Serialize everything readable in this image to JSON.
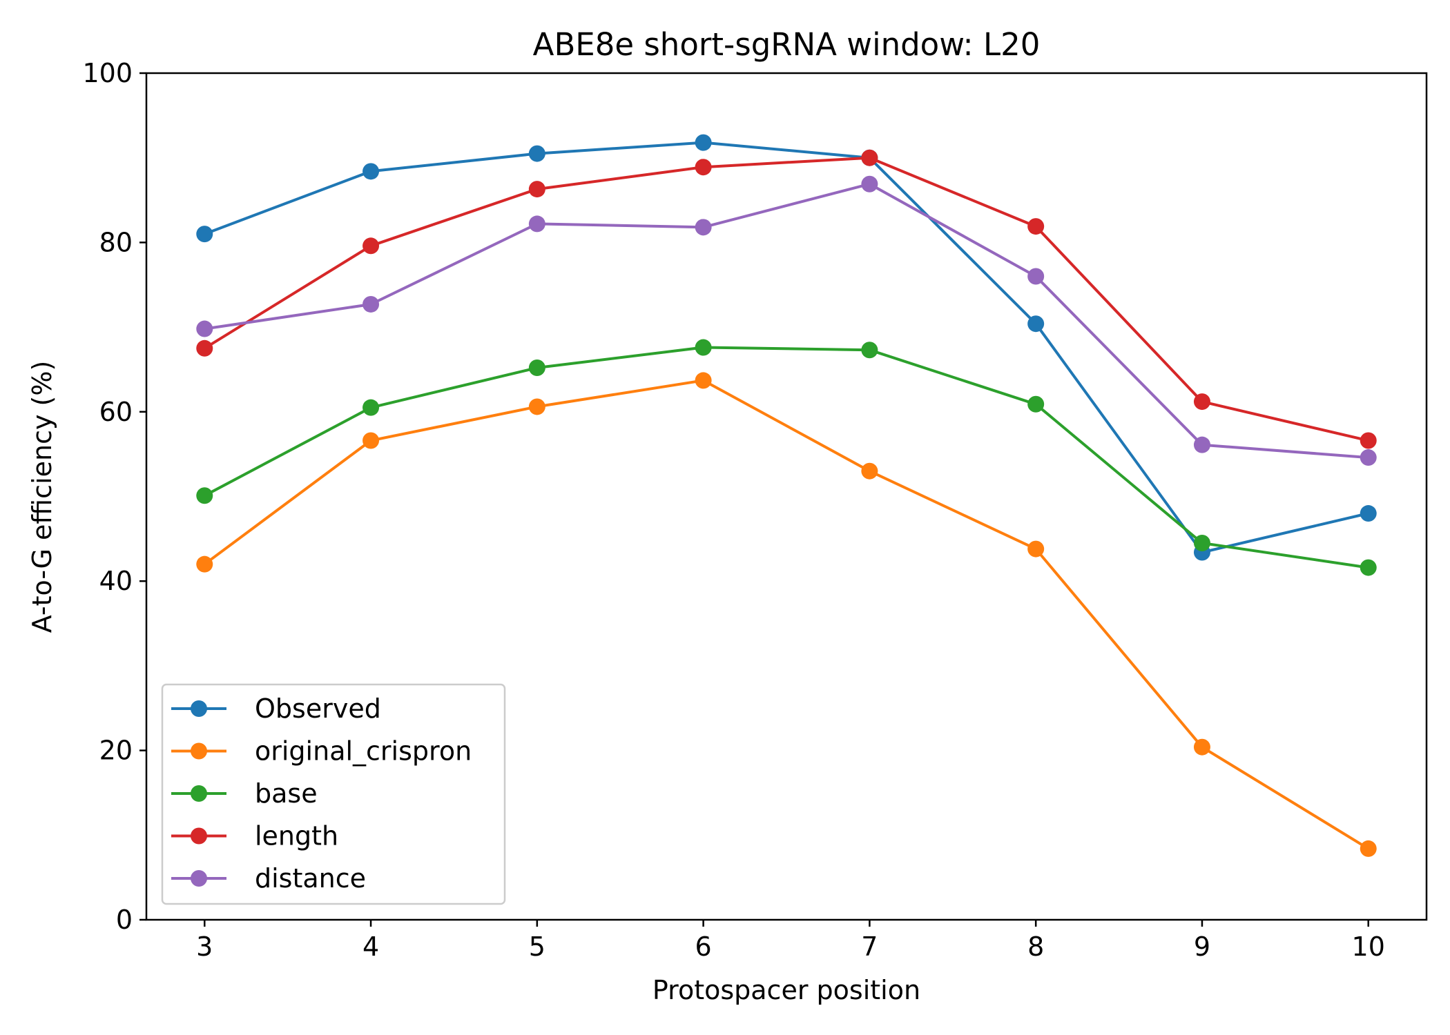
{
  "chart_data": {
    "type": "line",
    "title": "ABE8e short-sgRNA window: L20",
    "xlabel": "Protospacer position",
    "ylabel": "A-to-G efficiency (%)",
    "x": [
      3,
      4,
      5,
      6,
      7,
      8,
      9,
      10
    ],
    "xlim": [
      2.65,
      10.35
    ],
    "ylim": [
      0,
      100
    ],
    "xticks": [
      3,
      4,
      5,
      6,
      7,
      8,
      9,
      10
    ],
    "yticks": [
      0,
      20,
      40,
      60,
      80,
      100
    ],
    "grid": false,
    "legend_position": "lower-left",
    "marker": "circle",
    "series": [
      {
        "name": "Observed",
        "color": "#1f77b4",
        "values": [
          81.0,
          88.4,
          90.5,
          91.8,
          90.0,
          70.4,
          43.4,
          48.0
        ]
      },
      {
        "name": "original_crispron",
        "color": "#ff7f0e",
        "values": [
          42.0,
          56.6,
          60.6,
          63.7,
          53.0,
          43.8,
          20.4,
          8.4
        ]
      },
      {
        "name": "base",
        "color": "#2ca02c",
        "values": [
          50.1,
          60.5,
          65.2,
          67.6,
          67.3,
          60.9,
          44.5,
          41.6
        ]
      },
      {
        "name": "length",
        "color": "#d62728",
        "values": [
          67.5,
          79.6,
          86.3,
          88.9,
          90.0,
          81.9,
          61.2,
          56.6
        ]
      },
      {
        "name": "distance",
        "color": "#9467bd",
        "values": [
          69.8,
          72.7,
          82.2,
          81.8,
          86.9,
          76.0,
          56.1,
          54.6
        ]
      }
    ]
  }
}
